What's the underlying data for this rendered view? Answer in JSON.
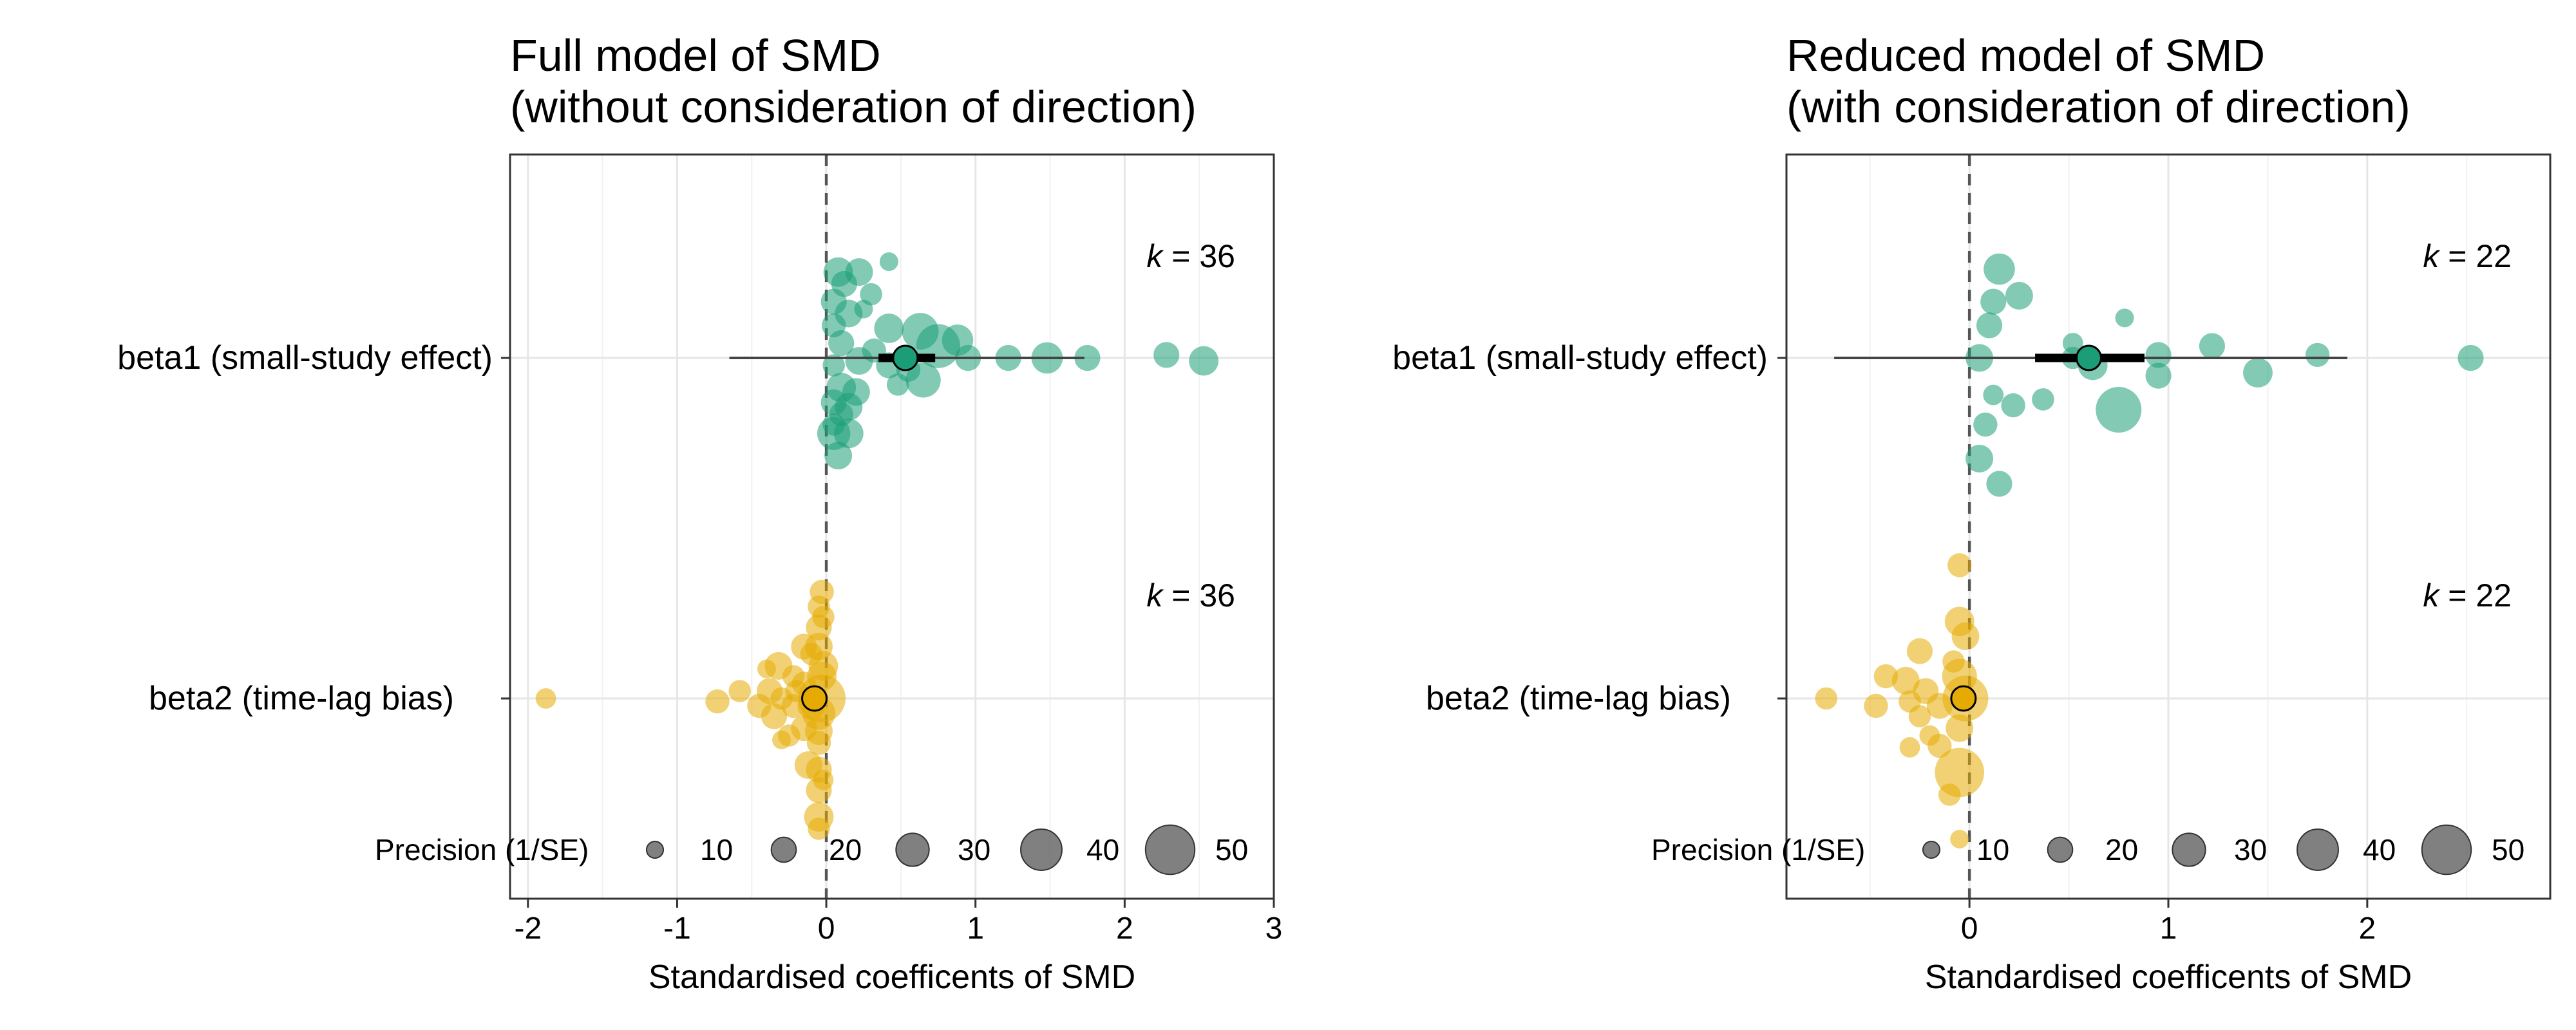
{
  "colors": {
    "beta1": "#1b9e77",
    "beta2": "#e6ab02",
    "legend_marker": "#555555"
  },
  "chart_data": [
    {
      "type": "scatter",
      "title_line1": "Full model of SMD",
      "title_line2": " (without consideration of direction)",
      "xlabel": "Standardised coefficents of SMD",
      "xlim": [
        -2.12,
        3.0
      ],
      "xticks": [
        -2,
        -1,
        0,
        1,
        2,
        3
      ],
      "xtick_labels": [
        "-2",
        "-1",
        "0",
        "1",
        "2",
        "3"
      ],
      "reference_line": 0,
      "categories": [
        "beta1 (small-study effect)",
        "beta2 (time-lag bias)"
      ],
      "k_labels": [
        "k = 36",
        "k = 36"
      ],
      "legend": {
        "title": "Precision (1/SE)",
        "sizes": [
          10,
          20,
          30,
          40,
          50
        ],
        "size_labels": [
          "10",
          "20",
          "30",
          "40",
          "50"
        ]
      },
      "series": [
        {
          "category": "beta1 (small-study effect)",
          "estimate": 0.53,
          "ci": [
            0.35,
            0.73
          ],
          "pi": [
            -0.65,
            1.73
          ],
          "points": [
            {
              "x": 0.08,
              "y": 0.58,
              "p": 22
            },
            {
              "x": 0.22,
              "y": 0.58,
              "p": 20
            },
            {
              "x": 0.12,
              "y": 0.5,
              "p": 18
            },
            {
              "x": 0.3,
              "y": 0.43,
              "p": 14
            },
            {
              "x": 0.05,
              "y": 0.38,
              "p": 18
            },
            {
              "x": 0.15,
              "y": 0.3,
              "p": 20
            },
            {
              "x": 0.25,
              "y": 0.33,
              "p": 10
            },
            {
              "x": 0.05,
              "y": 0.22,
              "p": 16
            },
            {
              "x": 0.42,
              "y": 0.2,
              "p": 22
            },
            {
              "x": 0.63,
              "y": 0.18,
              "p": 30
            },
            {
              "x": 0.88,
              "y": 0.12,
              "p": 24
            },
            {
              "x": 0.75,
              "y": 0.08,
              "p": 38
            },
            {
              "x": 0.32,
              "y": 0.05,
              "p": 16
            },
            {
              "x": 0.1,
              "y": 0.1,
              "p": 18
            },
            {
              "x": 0.22,
              "y": -0.02,
              "p": 20
            },
            {
              "x": 0.05,
              "y": -0.05,
              "p": 14
            },
            {
              "x": 0.42,
              "y": -0.05,
              "p": 18
            },
            {
              "x": 0.55,
              "y": -0.08,
              "p": 16
            },
            {
              "x": 0.95,
              "y": 0.0,
              "p": 18
            },
            {
              "x": 1.22,
              "y": 0.0,
              "p": 18
            },
            {
              "x": 1.48,
              "y": 0.0,
              "p": 24
            },
            {
              "x": 1.75,
              "y": 0.0,
              "p": 18
            },
            {
              "x": 2.28,
              "y": 0.02,
              "p": 18
            },
            {
              "x": 2.53,
              "y": -0.02,
              "p": 22
            },
            {
              "x": 0.65,
              "y": -0.15,
              "p": 28
            },
            {
              "x": 0.1,
              "y": -0.2,
              "p": 22
            },
            {
              "x": 0.2,
              "y": -0.23,
              "p": 20
            },
            {
              "x": 0.48,
              "y": -0.18,
              "p": 14
            },
            {
              "x": 0.05,
              "y": -0.3,
              "p": 18
            },
            {
              "x": 0.15,
              "y": -0.33,
              "p": 20
            },
            {
              "x": 0.1,
              "y": -0.38,
              "p": 16
            },
            {
              "x": 0.05,
              "y": -0.45,
              "p": 14
            },
            {
              "x": 0.05,
              "y": -0.51,
              "p": 26
            },
            {
              "x": 0.15,
              "y": -0.51,
              "p": 22
            },
            {
              "x": 0.08,
              "y": -0.66,
              "p": 20
            },
            {
              "x": 0.42,
              "y": 0.65,
              "p": 10
            }
          ]
        },
        {
          "category": "beta2 (time-lag bias)",
          "estimate": -0.08,
          "ci": [
            -0.1,
            -0.06
          ],
          "pi": [
            -0.1,
            -0.06
          ],
          "points": [
            {
              "x": -1.88,
              "y": 0.0,
              "p": 12
            },
            {
              "x": -0.73,
              "y": -0.02,
              "p": 16
            },
            {
              "x": -0.58,
              "y": 0.05,
              "p": 14
            },
            {
              "x": -0.45,
              "y": -0.05,
              "p": 16
            },
            {
              "x": -0.38,
              "y": 0.05,
              "p": 18
            },
            {
              "x": -0.3,
              "y": 0.0,
              "p": 14
            },
            {
              "x": -0.35,
              "y": -0.12,
              "p": 18
            },
            {
              "x": -0.22,
              "y": -0.05,
              "p": 16
            },
            {
              "x": -0.32,
              "y": 0.22,
              "p": 20
            },
            {
              "x": -0.22,
              "y": 0.15,
              "p": 14
            },
            {
              "x": -0.15,
              "y": 0.1,
              "p": 16
            },
            {
              "x": -0.15,
              "y": 0.35,
              "p": 18
            },
            {
              "x": -0.05,
              "y": 0.35,
              "p": 20
            },
            {
              "x": -0.05,
              "y": 0.48,
              "p": 18
            },
            {
              "x": -0.05,
              "y": 0.62,
              "p": 14
            },
            {
              "x": -0.03,
              "y": 0.72,
              "p": 16
            },
            {
              "x": -0.03,
              "y": 0.15,
              "p": 22
            },
            {
              "x": -0.02,
              "y": 0.22,
              "p": 22
            },
            {
              "x": -0.03,
              "y": 0.0,
              "p": 42
            },
            {
              "x": -0.05,
              "y": -0.1,
              "p": 26
            },
            {
              "x": -0.15,
              "y": -0.2,
              "p": 18
            },
            {
              "x": -0.05,
              "y": -0.22,
              "p": 20
            },
            {
              "x": -0.25,
              "y": -0.25,
              "p": 14
            },
            {
              "x": -0.05,
              "y": -0.3,
              "p": 16
            },
            {
              "x": -0.12,
              "y": -0.45,
              "p": 20
            },
            {
              "x": -0.05,
              "y": -0.48,
              "p": 18
            },
            {
              "x": -0.3,
              "y": -0.28,
              "p": 10
            },
            {
              "x": -0.05,
              "y": -0.62,
              "p": 18
            },
            {
              "x": -0.05,
              "y": -0.8,
              "p": 22
            },
            {
              "x": -0.05,
              "y": -0.88,
              "p": 14
            },
            {
              "x": -0.1,
              "y": -0.05,
              "p": 20
            },
            {
              "x": -0.2,
              "y": 0.05,
              "p": 14
            },
            {
              "x": -0.4,
              "y": 0.2,
              "p": 10
            },
            {
              "x": -0.02,
              "y": -0.55,
              "p": 12
            },
            {
              "x": -0.1,
              "y": 0.3,
              "p": 14
            },
            {
              "x": -0.02,
              "y": 0.55,
              "p": 14
            }
          ]
        }
      ]
    },
    {
      "type": "scatter",
      "title_line1": "Reduced model of SMD",
      "title_line2": " (with consideration of direction)",
      "xlabel": "Standardised coefficents of SMD",
      "xlim": [
        -0.92,
        2.92
      ],
      "xticks": [
        0,
        1,
        2
      ],
      "xtick_labels": [
        "0",
        "1",
        "2"
      ],
      "reference_line": 0,
      "categories": [
        "beta1 (small-study effect)",
        "beta2 (time-lag bias)"
      ],
      "k_labels": [
        "k = 22",
        "k = 22"
      ],
      "legend": {
        "title": "Precision (1/SE)",
        "sizes": [
          10,
          20,
          30,
          40,
          50
        ],
        "size_labels": [
          "10",
          "20",
          "30",
          "40",
          "50"
        ]
      },
      "series": [
        {
          "category": "beta1 (small-study effect)",
          "estimate": 0.6,
          "ci": [
            0.33,
            0.88
          ],
          "pi": [
            -0.68,
            1.9
          ],
          "points": [
            {
              "x": 0.15,
              "y": 0.6,
              "p": 24
            },
            {
              "x": 0.12,
              "y": 0.38,
              "p": 18
            },
            {
              "x": 0.25,
              "y": 0.42,
              "p": 20
            },
            {
              "x": 0.1,
              "y": 0.22,
              "p": 18
            },
            {
              "x": 0.78,
              "y": 0.27,
              "p": 10
            },
            {
              "x": 0.52,
              "y": 0.1,
              "p": 12
            },
            {
              "x": 0.05,
              "y": 0.0,
              "p": 20
            },
            {
              "x": 0.52,
              "y": 0.0,
              "p": 14
            },
            {
              "x": 0.62,
              "y": -0.05,
              "p": 22
            },
            {
              "x": 0.95,
              "y": 0.02,
              "p": 18
            },
            {
              "x": 1.22,
              "y": 0.08,
              "p": 18
            },
            {
              "x": 1.75,
              "y": 0.02,
              "p": 16
            },
            {
              "x": 2.52,
              "y": 0.0,
              "p": 18
            },
            {
              "x": 0.95,
              "y": -0.12,
              "p": 18
            },
            {
              "x": 1.45,
              "y": -0.1,
              "p": 22
            },
            {
              "x": 0.22,
              "y": -0.32,
              "p": 16
            },
            {
              "x": 0.12,
              "y": -0.25,
              "p": 12
            },
            {
              "x": 0.37,
              "y": -0.28,
              "p": 14
            },
            {
              "x": 0.75,
              "y": -0.35,
              "p": 40
            },
            {
              "x": 0.08,
              "y": -0.45,
              "p": 16
            },
            {
              "x": 0.05,
              "y": -0.68,
              "p": 20
            },
            {
              "x": 0.15,
              "y": -0.85,
              "p": 18
            }
          ]
        },
        {
          "category": "beta2 (time-lag bias)",
          "estimate": -0.03,
          "ci": [
            -0.04,
            -0.02
          ],
          "pi": [
            -0.04,
            -0.02
          ],
          "points": [
            {
              "x": -0.05,
              "y": 0.9,
              "p": 16
            },
            {
              "x": -0.05,
              "y": 0.52,
              "p": 22
            },
            {
              "x": -0.02,
              "y": 0.42,
              "p": 20
            },
            {
              "x": -0.25,
              "y": 0.32,
              "p": 18
            },
            {
              "x": -0.42,
              "y": 0.15,
              "p": 16
            },
            {
              "x": -0.32,
              "y": 0.12,
              "p": 20
            },
            {
              "x": -0.22,
              "y": 0.05,
              "p": 18
            },
            {
              "x": -0.05,
              "y": 0.15,
              "p": 28
            },
            {
              "x": -0.02,
              "y": 0.0,
              "p": 40
            },
            {
              "x": -0.72,
              "y": 0.0,
              "p": 14
            },
            {
              "x": -0.47,
              "y": -0.05,
              "p": 16
            },
            {
              "x": -0.3,
              "y": -0.02,
              "p": 14
            },
            {
              "x": -0.15,
              "y": -0.05,
              "p": 18
            },
            {
              "x": -0.25,
              "y": -0.12,
              "p": 14
            },
            {
              "x": -0.2,
              "y": -0.25,
              "p": 12
            },
            {
              "x": -0.05,
              "y": -0.2,
              "p": 20
            },
            {
              "x": -0.15,
              "y": -0.32,
              "p": 16
            },
            {
              "x": -0.05,
              "y": -0.5,
              "p": 44
            },
            {
              "x": -0.1,
              "y": -0.65,
              "p": 14
            },
            {
              "x": -0.3,
              "y": -0.33,
              "p": 12
            },
            {
              "x": -0.05,
              "y": -0.95,
              "p": 10
            },
            {
              "x": -0.08,
              "y": 0.25,
              "p": 14
            }
          ]
        }
      ]
    }
  ]
}
